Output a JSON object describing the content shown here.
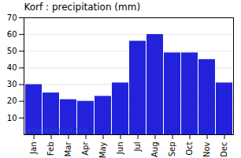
{
  "chart_data": {
    "type": "bar",
    "title": "Korf : precipitation (mm)",
    "categories": [
      "Jan",
      "Feb",
      "Mar",
      "Apr",
      "May",
      "Jun",
      "Jul",
      "Aug",
      "Sep",
      "Oct",
      "Nov",
      "Dec"
    ],
    "values": [
      30,
      25,
      21,
      20,
      23,
      31,
      56,
      60,
      49,
      49,
      45,
      31
    ],
    "color": "#2222dd",
    "ylim": [
      0,
      70
    ],
    "yticks": [
      10,
      20,
      30,
      40,
      50,
      60,
      70
    ],
    "grid": true,
    "annotations": [
      "www.allmetsat.com"
    ]
  }
}
